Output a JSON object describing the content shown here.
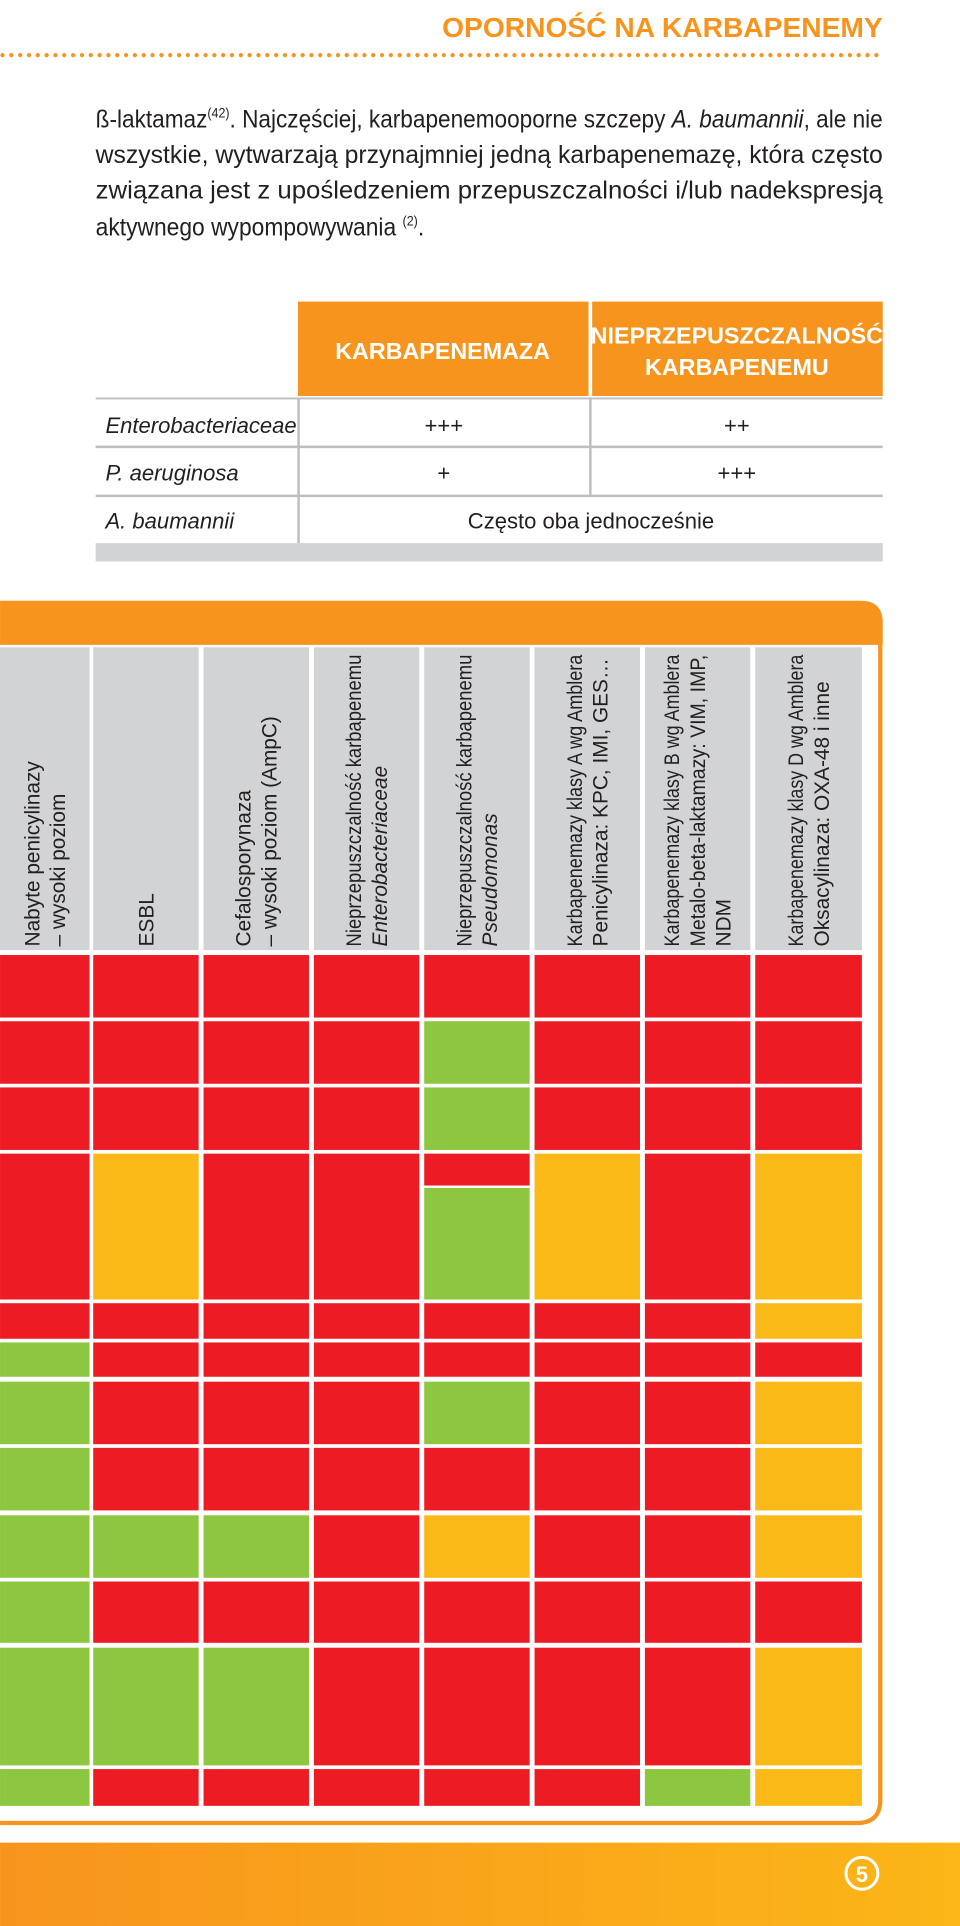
{
  "header": {
    "title": "OPORNOŚĆ NA KARBAPENEMY"
  },
  "paragraph": [
    "ß-laktamaz",
    "(42)",
    ". Najczęściej, karbapenemooporne szczepy ",
    "A. baumannii",
    ", ale nie",
    "wszystkie, wytwarzają przynajmniej jedną karbapenemazę, która często",
    "związana jest z upośledzeniem przepuszczalności i/lub nadekspresją",
    "aktywnego wypompowywania ",
    "(2)",
    "."
  ],
  "table": {
    "columns": [
      [
        "KARBAPENEMAZA"
      ],
      [
        "NIEPRZEPUSZCZALNOŚĆ",
        "KARBAPENEMU"
      ]
    ],
    "rows": [
      [
        "Enterobacteriaceae",
        "+++",
        "++"
      ],
      [
        "P. aeruginosa",
        "+",
        "+++"
      ],
      [
        "A. baumannii",
        "Często oba jednocześnie"
      ]
    ]
  },
  "matrix": {
    "columns": [
      [
        "Nabyte penicylinazy",
        "– wysoki poziom"
      ],
      [
        "ESBL"
      ],
      [
        "Cefalosporynaza",
        "– wysoki poziom (AmpC)"
      ],
      [
        "Nieprzepuszczalność karbapenemu",
        "Enterobacteriaceae"
      ],
      [
        "Nieprzepuszczalność karbapenemu",
        "Pseudomonas"
      ],
      [
        "Karbapenemazy  klasy A wg Amblera",
        "Penicylinaza: KPC, IMI, GES…"
      ],
      [
        "Karbapenemazy  klasy B wg Amblera",
        "Metalo-beta-laktamazy: VIM, IMP,",
        "NDM"
      ],
      [
        "Karbapenemazy  klasy D wg Amblera",
        "Oksacylinaza: OXA-48 i inne"
      ]
    ]
  },
  "footer": {
    "page": "5"
  }
}
